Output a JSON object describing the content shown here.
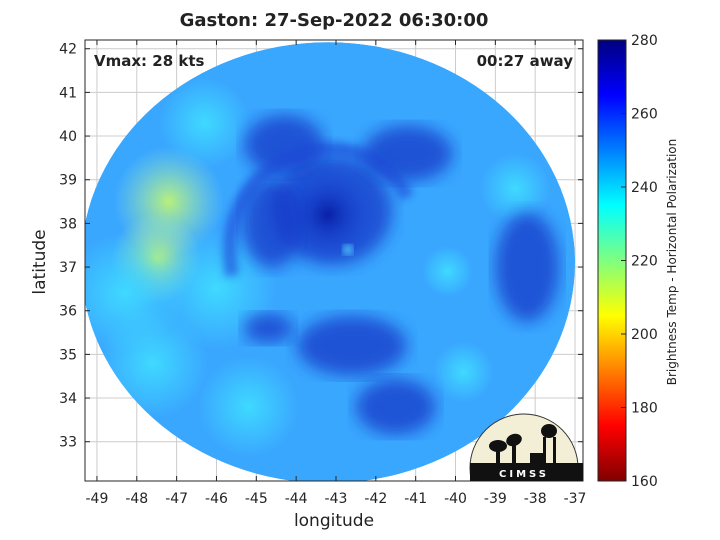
{
  "chart_data": {
    "type": "heatmap",
    "title": "Gaston: 27-Sep-2022 06:30:00",
    "xlabel": "longitude",
    "ylabel": "latitude",
    "xlim": [
      -49.3,
      -36.8
    ],
    "ylim": [
      32.1,
      42.2
    ],
    "xticks": [
      -49,
      -48,
      -47,
      -46,
      -45,
      -44,
      -43,
      -42,
      -41,
      -40,
      -39,
      -38,
      -37
    ],
    "yticks": [
      33,
      34,
      35,
      36,
      37,
      38,
      39,
      40,
      41,
      42
    ],
    "grid": true,
    "annotations": {
      "vmax": "Vmax: 28 kts",
      "away": "00:27 away"
    },
    "colorbar": {
      "label": "Brightness Temp - Horizontal Polarization",
      "min": 160,
      "max": 280,
      "ticks": [
        160,
        180,
        200,
        220,
        240,
        260,
        280
      ],
      "colormap": "jet"
    },
    "swath": {
      "center_lon": -43.2,
      "center_lat": 37.1,
      "radius_lon": 6.2,
      "radius_lat": 5.05
    },
    "storm_center": {
      "lon": -42.7,
      "lat": 37.4
    },
    "logo_text": "CIMSS",
    "colors": {
      "background": "#ffffff",
      "land_base": "#3aa7ff",
      "grid": "#cccccc"
    }
  }
}
